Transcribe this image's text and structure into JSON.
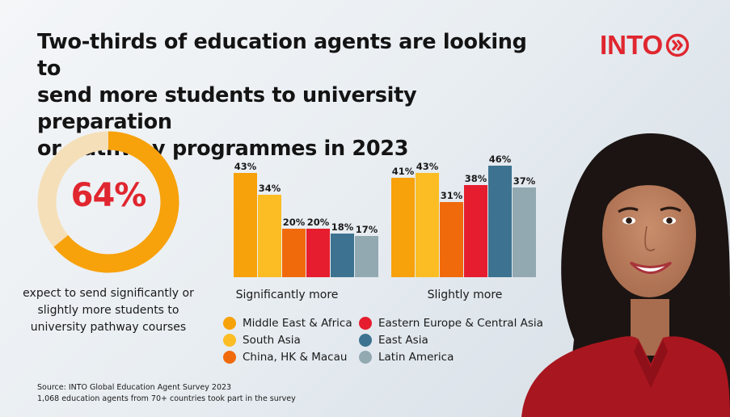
{
  "headline": {
    "line1": "Two-thirds of education agents are looking to",
    "line2": "send more students to university preparation",
    "line3": "or pathway programmes in 2023"
  },
  "logo": {
    "text": "INTO",
    "icon": "double-chevron-right-icon",
    "color": "#e0262f"
  },
  "donut": {
    "value_label": "64%",
    "fraction": 0.64,
    "fill_color": "#f7a10b",
    "track_color": "#f5dfb8",
    "caption_line1": "expect to send significantly or",
    "caption_line2": "slightly more students to",
    "caption_line3": "university pathway courses"
  },
  "chart_data": {
    "type": "bar",
    "categories": [
      "Significantly more",
      "Slightly more"
    ],
    "series": [
      {
        "name": "Middle East & Africa",
        "color": "#f7a10b",
        "values": [
          43,
          41
        ],
        "labels": [
          "43%",
          "41%"
        ]
      },
      {
        "name": "South Asia",
        "color": "#fbbd23",
        "values": [
          34,
          43
        ],
        "labels": [
          "34%",
          "43%"
        ]
      },
      {
        "name": "China, HK & Macau",
        "color": "#f06a0c",
        "values": [
          20,
          31
        ],
        "labels": [
          "20%",
          "31%"
        ]
      },
      {
        "name": "Eastern Europe & Central Asia",
        "color": "#e51d2e",
        "values": [
          20,
          38
        ],
        "labels": [
          "20%",
          "38%"
        ]
      },
      {
        "name": "East Asia",
        "color": "#3d7390",
        "values": [
          18,
          46
        ],
        "labels": [
          "18%",
          "46%"
        ]
      },
      {
        "name": "Latin America",
        "color": "#93a9b2",
        "values": [
          17,
          37
        ],
        "labels": [
          "17%",
          "37%"
        ]
      }
    ],
    "ylim": [
      0,
      50
    ],
    "grid": false,
    "legend_position": "bottom"
  },
  "source": {
    "line1": "Source: INTO Global Education Agent Survey 2023",
    "line2": "1,068 education agents from 70+ countries took part in the survey"
  }
}
